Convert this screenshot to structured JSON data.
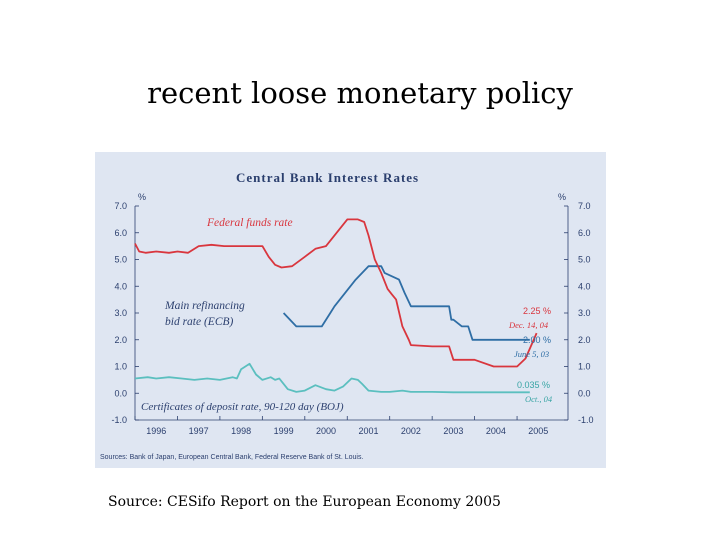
{
  "slide": {
    "title": "recent loose monetary policy",
    "caption": "Source: CESifo Report on the European Economy 2005"
  },
  "chart_data": {
    "type": "line",
    "title": "Central Bank Interest Rates",
    "y_unit_left": "%",
    "y_unit_right": "%",
    "ylim": [
      -1.0,
      7.0
    ],
    "yticks": [
      "7.0",
      "6.0",
      "5.0",
      "4.0",
      "3.0",
      "2.0",
      "1.0",
      "0.0",
      "-1.0"
    ],
    "xlim": [
      1995.5,
      2005.7
    ],
    "xticks": [
      "1996",
      "1997",
      "1998",
      "1999",
      "2000",
      "2001",
      "2002",
      "2003",
      "2004",
      "2005"
    ],
    "source": "Sources: Bank of Japan, European Central Bank, Federal Reserve Bank of St. Louis.",
    "grid": false,
    "colors": {
      "fed": "#d9363e",
      "ecb": "#2f6ea5",
      "boj": "#5bbfbf"
    },
    "series": [
      {
        "name": "Federal funds rate",
        "color_key": "fed",
        "x": [
          1995.5,
          1995.6,
          1995.75,
          1996.0,
          1996.3,
          1996.5,
          1996.75,
          1997.0,
          1997.3,
          1997.6,
          1997.85,
          1998.0,
          1998.3,
          1998.5,
          1998.65,
          1998.8,
          1998.95,
          1999.2,
          1999.5,
          1999.75,
          2000.0,
          2000.25,
          2000.5,
          2000.75,
          2000.9,
          2001.0,
          2001.15,
          2001.3,
          2001.45,
          2001.55,
          2001.65,
          2001.8,
          2001.95,
          2002.0,
          2002.5,
          2002.9,
          2003.0,
          2003.5,
          2003.95,
          2004.5,
          2004.7,
          2004.96
        ],
        "y": [
          5.6,
          5.3,
          5.25,
          5.3,
          5.25,
          5.3,
          5.25,
          5.5,
          5.55,
          5.5,
          5.5,
          5.5,
          5.5,
          5.5,
          5.1,
          4.8,
          4.7,
          4.75,
          5.1,
          5.4,
          5.5,
          6.0,
          6.5,
          6.5,
          6.4,
          5.9,
          5.0,
          4.5,
          3.9,
          3.7,
          3.5,
          2.5,
          2.0,
          1.8,
          1.75,
          1.75,
          1.25,
          1.25,
          1.0,
          1.0,
          1.3,
          2.25
        ]
      },
      {
        "name": "Main refinancing bid rate (ECB)",
        "color_key": "ecb",
        "x": [
          1999.0,
          1999.3,
          1999.9,
          2000.1,
          2000.2,
          2000.45,
          2000.7,
          2001.0,
          2001.3,
          2001.38,
          2001.72,
          2001.85,
          2002.0,
          2002.9,
          2002.95,
          2003.0,
          2003.2,
          2003.35,
          2003.45,
          2004.8
        ],
        "y": [
          3.0,
          2.5,
          2.5,
          3.0,
          3.25,
          3.75,
          4.25,
          4.75,
          4.75,
          4.5,
          4.25,
          3.75,
          3.25,
          3.25,
          2.75,
          2.75,
          2.5,
          2.5,
          2.0,
          2.0
        ]
      },
      {
        "name": "Certificates of deposit rate, 90-120 day (BOJ)",
        "color_key": "boj",
        "x": [
          1995.5,
          1995.8,
          1996.0,
          1996.3,
          1996.6,
          1996.9,
          1997.2,
          1997.5,
          1997.8,
          1997.9,
          1998.0,
          1998.2,
          1998.35,
          1998.5,
          1998.7,
          1998.8,
          1998.9,
          1999.1,
          1999.3,
          1999.5,
          1999.75,
          2000.0,
          2000.2,
          2000.4,
          2000.6,
          2000.75,
          2000.85,
          2001.0,
          2001.3,
          2001.5,
          2001.8,
          2002.0,
          2002.5,
          2003.0,
          2003.5,
          2004.0,
          2004.5,
          2004.8
        ],
        "y": [
          0.55,
          0.6,
          0.55,
          0.6,
          0.55,
          0.5,
          0.55,
          0.5,
          0.6,
          0.55,
          0.9,
          1.1,
          0.7,
          0.5,
          0.6,
          0.5,
          0.55,
          0.15,
          0.05,
          0.1,
          0.3,
          0.15,
          0.1,
          0.25,
          0.55,
          0.5,
          0.35,
          0.1,
          0.05,
          0.05,
          0.1,
          0.05,
          0.05,
          0.035,
          0.035,
          0.035,
          0.035,
          0.035
        ]
      }
    ],
    "labels": {
      "fed": "Federal funds rate",
      "ecb_line1": "Main refinancing",
      "ecb_line2": "bid rate (ECB)",
      "boj": "Certificates of deposit rate, 90-120 day (BOJ)"
    },
    "annotations": {
      "fed_value": "2.25 %",
      "fed_date": "Dec. 14, 04",
      "ecb_value": "2.00 %",
      "ecb_date": "June 5, 03",
      "boj_value": "0.035 %",
      "boj_date": "Oct., 04"
    }
  }
}
